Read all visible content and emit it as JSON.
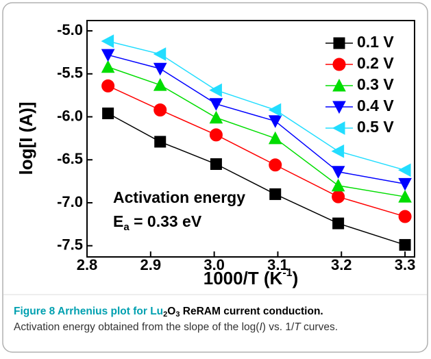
{
  "chart_data": {
    "type": "line",
    "xlabel": [
      "1000/T (K",
      "-1",
      ")"
    ],
    "ylabel": "log[I (A)]",
    "annotation": [
      "Activation energy",
      "E",
      "a",
      " = 0.33 eV"
    ],
    "x": [
      2.833,
      2.915,
      3.003,
      3.096,
      3.195,
      3.3
    ],
    "xlim": [
      2.8,
      3.315
    ],
    "xticks": [
      2.8,
      2.9,
      {
        "value": 3.0,
        "label": "3.0"
      },
      3.1,
      3.2,
      3.3
    ],
    "ylim": [
      -7.63,
      -4.88
    ],
    "yticks": [
      {
        "value": -5.0,
        "label": "-5.0"
      },
      -5.5,
      {
        "value": -6.0,
        "label": "-6.0"
      },
      -6.5,
      {
        "value": -7.0,
        "label": "-7.0"
      },
      -7.5
    ],
    "legend": "upper right",
    "series": [
      {
        "name": "0.1 V",
        "color": "#000000",
        "marker": "square",
        "values": [
          -5.96,
          -6.29,
          -6.55,
          -6.9,
          -7.24,
          -7.49
        ]
      },
      {
        "name": "0.2 V",
        "color": "#ff0000",
        "marker": "circle",
        "values": [
          -5.64,
          -5.92,
          -6.21,
          -6.56,
          -6.93,
          -7.16
        ]
      },
      {
        "name": "0.3 V",
        "color": "#00dd00",
        "marker": "triangle-up",
        "values": [
          -5.42,
          -5.63,
          -6.01,
          -6.25,
          -6.8,
          -6.93
        ]
      },
      {
        "name": "0.4 V",
        "color": "#0000ff",
        "marker": "triangle-down",
        "values": [
          -5.28,
          -5.44,
          -5.85,
          -6.05,
          -6.64,
          -6.78
        ]
      },
      {
        "name": "0.5 V",
        "color": "#22ddff",
        "marker": "triangle-left",
        "values": [
          -5.12,
          -5.27,
          -5.69,
          -5.92,
          -6.4,
          -6.62
        ]
      }
    ]
  },
  "caption_title": [
    "Figure 8 Arrhenius plot for Lu",
    "2",
    "O",
    "3",
    " ReRAM current conduction."
  ],
  "caption_text": [
    "Activation energy obtained from the slope of the log(",
    "I",
    ") vs. 1/",
    "T",
    " curves."
  ]
}
